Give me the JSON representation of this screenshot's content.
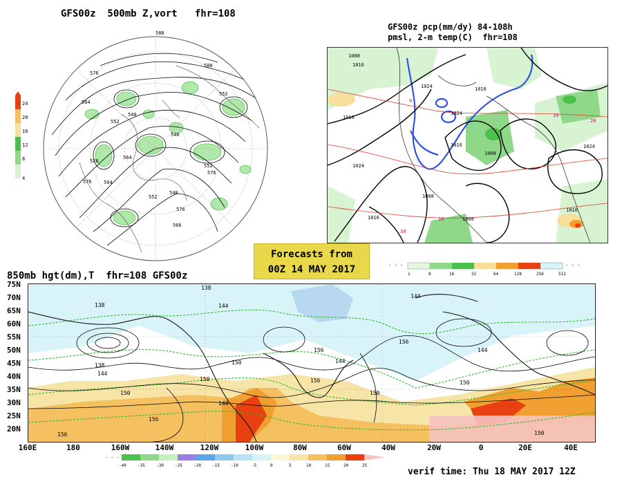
{
  "polar_panel": {
    "title": "GFS00z  500mb Z,vort   fhr=108",
    "contour_labels": [
      "576",
      "588",
      "564",
      "552",
      "540",
      "528",
      "552",
      "576",
      "564",
      "552",
      "576",
      "564",
      "540",
      "552",
      "576",
      "566",
      "588",
      "540"
    ],
    "colorbar_ticks": [
      "24",
      "20",
      "16",
      "12",
      "8",
      "4"
    ]
  },
  "na_panel": {
    "title_line1": "GFS00z pcp(mm/dy) 84-108h",
    "title_line2": "pmsl, 2-m temp(C)  fhr=108",
    "isobar_labels": [
      "1008",
      "1016",
      "1024",
      "1016",
      "1024",
      "1016",
      "1008",
      "1008",
      "1016",
      "1024",
      "1016",
      "1008",
      "1016",
      "1024"
    ],
    "isotherm_labels": [
      "10",
      "20",
      "10",
      "30",
      "0"
    ],
    "colorbar_ticks": [
      "1",
      "8",
      "16",
      "32",
      "64",
      "128",
      "256",
      "512"
    ]
  },
  "banner": {
    "line1": "Forecasts from",
    "line2": "00Z 14 MAY 2017"
  },
  "bottom_panel": {
    "title": "850mb hgt(dm),T  fhr=108 GFS00z",
    "lat_labels": [
      "75N",
      "70N",
      "65N",
      "60N",
      "55N",
      "50N",
      "45N",
      "40N",
      "35N",
      "30N",
      "25N",
      "20N"
    ],
    "lon_labels": [
      "160E",
      "180",
      "160W",
      "140W",
      "120W",
      "100W",
      "80W",
      "60W",
      "40W",
      "20W",
      "0",
      "20E",
      "40E"
    ],
    "contour_labels": [
      "138",
      "144",
      "138",
      "144",
      "150",
      "156",
      "150",
      "144",
      "156",
      "150",
      "144",
      "156",
      "150",
      "156",
      "150",
      "144",
      "144",
      "150",
      "138",
      "156"
    ],
    "temp_scale_ticks": [
      "-40",
      "-35",
      "-30",
      "-25",
      "-20",
      "-15",
      "-10",
      "-5",
      "0",
      "5",
      "10",
      "15",
      "20",
      "25"
    ]
  },
  "verif_time": "verif time: Thu 18 MAY 2017 12Z",
  "colors": {
    "green_vort": "#4cc04c",
    "light_green": "#bff0bf",
    "tan": "#f5df9a",
    "orange": "#f0a030",
    "red": "#e84010",
    "ice": "#d8f4f8",
    "purple": "#9a80e0",
    "blue_snow": "#4060e0"
  }
}
